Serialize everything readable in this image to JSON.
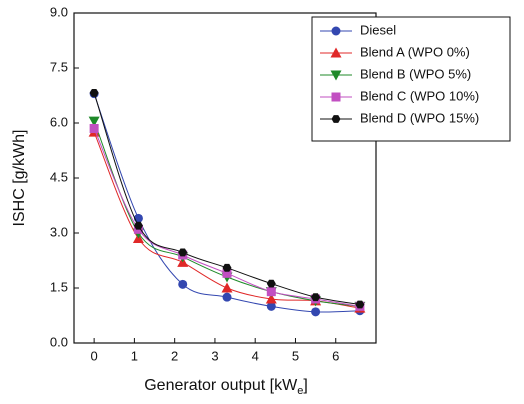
{
  "chart_data": {
    "type": "scatter-line",
    "ylabel": "ISHC [g/kWh]",
    "xlabel": "Generator output [kW",
    "xlabel_sub": "e",
    "xlabel_end": "]",
    "xlim": [
      -0.5,
      7.0
    ],
    "xticks": [
      0,
      1,
      2,
      3,
      4,
      5,
      6
    ],
    "ylim": [
      0,
      9
    ],
    "yticks": [
      {
        "value": 0,
        "label": "0.0"
      },
      {
        "value": 1.5,
        "label": "1.5"
      },
      {
        "value": 3,
        "label": "3.0"
      },
      {
        "value": 4.5,
        "label": "4.5"
      },
      {
        "value": 6,
        "label": "6.0"
      },
      {
        "value": 7.5,
        "label": "7.5"
      },
      {
        "value": 9,
        "label": "9.0"
      }
    ],
    "x": [
      0,
      1.1,
      2.2,
      3.3,
      4.4,
      5.5,
      6.6
    ],
    "legend": "upper right",
    "series": [
      {
        "name": "Diesel",
        "color": "#3347b0",
        "marker": "circle",
        "values": [
          6.8,
          3.4,
          1.6,
          1.25,
          1.0,
          0.85,
          0.88
        ]
      },
      {
        "name": "Blend A (WPO 0%)",
        "color": "#e02828",
        "marker": "triangle-up",
        "values": [
          5.75,
          2.85,
          2.2,
          1.5,
          1.2,
          1.15,
          0.95
        ]
      },
      {
        "name": "Blend B (WPO 5%)",
        "color": "#1f8a2a",
        "marker": "triangle-down",
        "values": [
          6.05,
          3.0,
          2.35,
          1.8,
          1.4,
          1.15,
          1.0
        ]
      },
      {
        "name": "Blend C (WPO 10%)",
        "color": "#c24fc2",
        "marker": "square",
        "values": [
          5.85,
          3.1,
          2.4,
          1.9,
          1.4,
          1.2,
          1.0
        ]
      },
      {
        "name": "Blend D (WPO 15%)",
        "color": "#111111",
        "marker": "hexagon",
        "values": [
          6.82,
          3.2,
          2.47,
          2.05,
          1.62,
          1.25,
          1.05
        ]
      }
    ]
  }
}
